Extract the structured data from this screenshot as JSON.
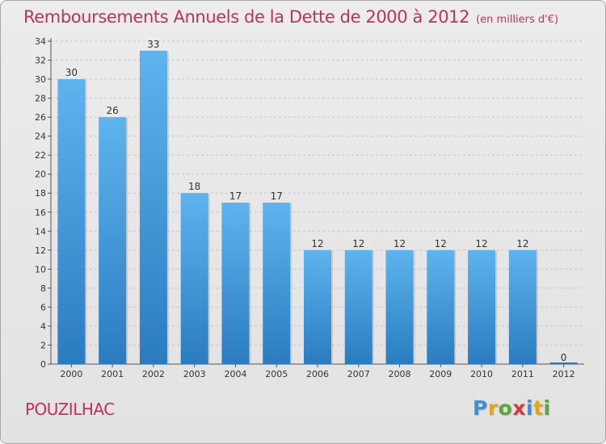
{
  "title": "Remboursements Annuels de la Dette de 2000 à 2012",
  "subtitle": "(en milliers d'€)",
  "commune": "POUZILHAC",
  "brand": {
    "letters": [
      "P",
      "r",
      "o",
      "x",
      "i",
      "t",
      "i"
    ],
    "colors": [
      "#3b8fd6",
      "#e8a317",
      "#5aa63b",
      "#d83a3a",
      "#3b8fd6",
      "#e8a317",
      "#5aa63b"
    ]
  },
  "colors": {
    "title": "#c0315e",
    "bar_light": "#5eb4ee",
    "bar_dark": "#2a7cc0",
    "grid": "#c8c8c8"
  },
  "chart_data": {
    "type": "bar",
    "title": "Remboursements Annuels de la Dette de 2000 à 2012",
    "subtitle": "(en milliers d'€)",
    "xlabel": "",
    "ylabel": "",
    "categories": [
      "2000",
      "2001",
      "2002",
      "2003",
      "2004",
      "2005",
      "2006",
      "2007",
      "2008",
      "2009",
      "2010",
      "2011",
      "2012"
    ],
    "values": [
      30,
      26,
      33,
      18,
      17,
      17,
      12,
      12,
      12,
      12,
      12,
      12,
      0
    ],
    "ylim": [
      0,
      34
    ],
    "yticks": [
      0,
      2,
      4,
      6,
      8,
      10,
      12,
      14,
      16,
      18,
      20,
      22,
      24,
      26,
      28,
      30,
      32,
      34
    ],
    "grid": true,
    "legend": "none"
  }
}
